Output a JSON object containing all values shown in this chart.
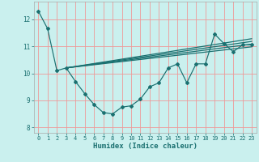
{
  "x_main": [
    0,
    1,
    2,
    3,
    4,
    5,
    6,
    7,
    8,
    9,
    10,
    11,
    12,
    13,
    14,
    15,
    16,
    17,
    18,
    19,
    20,
    21,
    22,
    23
  ],
  "y_main": [
    12.3,
    11.65,
    10.1,
    10.2,
    9.7,
    9.25,
    8.85,
    8.55,
    8.5,
    8.75,
    8.8,
    9.05,
    9.5,
    9.65,
    10.2,
    10.35,
    9.65,
    10.35,
    10.35,
    11.45,
    11.1,
    10.8,
    11.05,
    11.05
  ],
  "trend_lines": [
    {
      "x0": 3.0,
      "y0": 10.2,
      "x1": 23.0,
      "y1": 10.98
    },
    {
      "x0": 3.0,
      "y0": 10.2,
      "x1": 23.0,
      "y1": 11.08
    },
    {
      "x0": 3.0,
      "y0": 10.2,
      "x1": 23.0,
      "y1": 11.18
    },
    {
      "x0": 3.0,
      "y0": 10.2,
      "x1": 23.0,
      "y1": 11.28
    }
  ],
  "bg_color": "#caf0ee",
  "grid_color": "#ee9999",
  "line_color": "#1a7070",
  "xlabel": "Humidex (Indice chaleur)",
  "xlim": [
    -0.5,
    23.5
  ],
  "ylim": [
    7.8,
    12.65
  ],
  "yticks": [
    8,
    9,
    10,
    11,
    12
  ],
  "xticks": [
    0,
    1,
    2,
    3,
    4,
    5,
    6,
    7,
    8,
    9,
    10,
    11,
    12,
    13,
    14,
    15,
    16,
    17,
    18,
    19,
    20,
    21,
    22,
    23
  ]
}
